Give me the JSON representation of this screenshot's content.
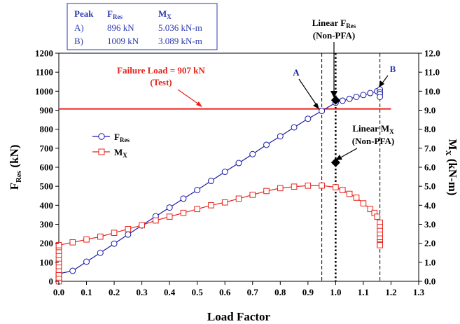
{
  "chart_data": {
    "type": "line",
    "xlabel": "Load Factor",
    "ylabel_left": {
      "main": "F",
      "sub": "Res",
      "unit": " (kN)"
    },
    "ylabel_right": {
      "main": "M",
      "sub": "X",
      "unit": " (kN-m)"
    },
    "xlim": [
      0.0,
      1.3
    ],
    "ylim_left": [
      0,
      1200
    ],
    "ylim_right": [
      0.0,
      12.0
    ],
    "x_ticks": [
      "0.0",
      "0.1",
      "0.2",
      "0.3",
      "0.4",
      "0.5",
      "0.6",
      "0.7",
      "0.8",
      "0.9",
      "1.0",
      "1.1",
      "1.2",
      "1.3"
    ],
    "y_left_ticks": [
      "0",
      "100",
      "200",
      "300",
      "400",
      "500",
      "600",
      "700",
      "800",
      "900",
      "1000",
      "1100",
      "1200"
    ],
    "y_right_ticks": [
      "0.0",
      "1.0",
      "2.0",
      "3.0",
      "4.0",
      "5.0",
      "6.0",
      "7.0",
      "8.0",
      "9.0",
      "10.0",
      "11.0",
      "12.0"
    ],
    "colors": {
      "fres": "#1a1aa6",
      "mx": "#e8231b",
      "failure": "#e8231b",
      "table": "#2e3ab0",
      "label_a": "#1a1aa6",
      "label_b": "#2e3ab0"
    },
    "series": [
      {
        "name": "F_Res",
        "axis": "left",
        "marker": "circle",
        "x": [
          0.0,
          0.0,
          0.0,
          0.0,
          0.0,
          0.05,
          0.1,
          0.15,
          0.2,
          0.25,
          0.3,
          0.35,
          0.4,
          0.45,
          0.5,
          0.55,
          0.6,
          0.65,
          0.7,
          0.75,
          0.8,
          0.85,
          0.9,
          0.95,
          1.0,
          1.025,
          1.05,
          1.075,
          1.1,
          1.125,
          1.15,
          1.16,
          1.16,
          1.16,
          1.16
        ],
        "y": [
          0,
          10,
          20,
          30,
          40,
          55,
          103,
          150,
          198,
          246,
          294,
          342,
          388,
          435,
          480,
          528,
          576,
          622,
          669,
          718,
          763,
          810,
          855,
          896,
          940,
          950,
          960,
          970,
          980,
          990,
          1000,
          1009,
          995,
          985,
          970
        ]
      },
      {
        "name": "M_X",
        "axis": "right",
        "marker": "square",
        "x": [
          0.0,
          0.0,
          0.0,
          0.0,
          0.0,
          0.0,
          0.0,
          0.0,
          0.0,
          0.0,
          0.0,
          0.05,
          0.1,
          0.15,
          0.2,
          0.25,
          0.3,
          0.35,
          0.4,
          0.45,
          0.5,
          0.55,
          0.6,
          0.65,
          0.7,
          0.75,
          0.8,
          0.85,
          0.9,
          0.95,
          1.0,
          1.025,
          1.05,
          1.075,
          1.1,
          1.125,
          1.14,
          1.15,
          1.16,
          1.16,
          1.16,
          1.16,
          1.16,
          1.16,
          1.16,
          1.16
        ],
        "y": [
          0.0,
          0.2,
          0.4,
          0.6,
          0.8,
          1.0,
          1.2,
          1.4,
          1.6,
          1.8,
          1.9,
          2.05,
          2.2,
          2.35,
          2.55,
          2.75,
          2.95,
          3.2,
          3.4,
          3.6,
          3.8,
          4.0,
          4.15,
          4.35,
          4.55,
          4.75,
          4.9,
          4.98,
          5.03,
          5.036,
          4.95,
          4.8,
          4.6,
          4.4,
          4.1,
          3.8,
          3.6,
          3.4,
          3.089,
          2.85,
          2.65,
          2.45,
          2.25,
          2.05,
          1.95,
          1.9
        ]
      }
    ],
    "legend": {
      "fres": {
        "main": "F",
        "sub": "Res"
      },
      "mx": {
        "main": "M",
        "sub": "X"
      }
    },
    "failure_line": {
      "value": 907,
      "label": "Failure Load = 907 kN",
      "sublabel": "(Test)"
    },
    "vlines_dashed": [
      0.95,
      1.16
    ],
    "vline_dotted": 1.0,
    "linear_points": [
      {
        "x": 1.0,
        "y": 953,
        "axis": "left"
      },
      {
        "x": 1.0,
        "y": 6.25,
        "axis": "right"
      }
    ],
    "annotations": {
      "linear_fres": {
        "line1_main": "Linear F",
        "line1_sub": "Res",
        "line2": "(Non-PFA)"
      },
      "linear_mx": {
        "line1_main": "Linear M",
        "line1_sub": "X",
        "line2": "(Non-PFA)"
      },
      "label_a": "A",
      "label_b": "B"
    },
    "table": {
      "headers": {
        "peak": "Peak",
        "f_main": "F",
        "f_sub": "Res",
        "m_main": "M",
        "m_sub": "X"
      },
      "rows": [
        {
          "peak": "A)",
          "f": "896 kN",
          "m": "5.036 kN-m"
        },
        {
          "peak": "B)",
          "f": "1009 kN",
          "m": "3.089 kN-m"
        }
      ]
    }
  }
}
